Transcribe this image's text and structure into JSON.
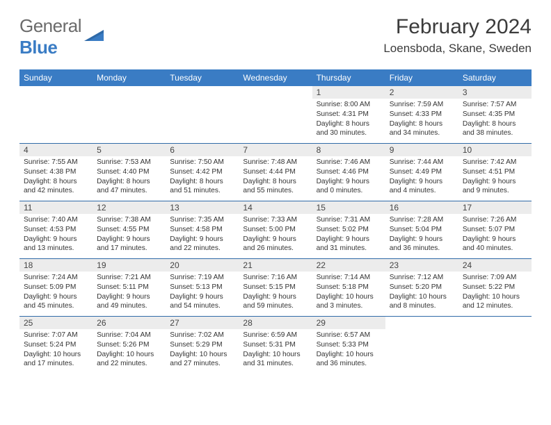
{
  "logo": {
    "text1": "General",
    "text2": "Blue"
  },
  "header": {
    "month": "February 2024",
    "location": "Loensboda, Skane, Sweden"
  },
  "colors": {
    "accent": "#3a7cc4",
    "daynum_bg": "#ececec",
    "text": "#333333",
    "border": "#2f6aa8"
  },
  "weekdays": [
    "Sunday",
    "Monday",
    "Tuesday",
    "Wednesday",
    "Thursday",
    "Friday",
    "Saturday"
  ],
  "weeks": [
    [
      {
        "n": "",
        "s": "",
        "t": "",
        "d": ""
      },
      {
        "n": "",
        "s": "",
        "t": "",
        "d": ""
      },
      {
        "n": "",
        "s": "",
        "t": "",
        "d": ""
      },
      {
        "n": "",
        "s": "",
        "t": "",
        "d": ""
      },
      {
        "n": "1",
        "s": "Sunrise: 8:00 AM",
        "t": "Sunset: 4:31 PM",
        "d": "Daylight: 8 hours and 30 minutes."
      },
      {
        "n": "2",
        "s": "Sunrise: 7:59 AM",
        "t": "Sunset: 4:33 PM",
        "d": "Daylight: 8 hours and 34 minutes."
      },
      {
        "n": "3",
        "s": "Sunrise: 7:57 AM",
        "t": "Sunset: 4:35 PM",
        "d": "Daylight: 8 hours and 38 minutes."
      }
    ],
    [
      {
        "n": "4",
        "s": "Sunrise: 7:55 AM",
        "t": "Sunset: 4:38 PM",
        "d": "Daylight: 8 hours and 42 minutes."
      },
      {
        "n": "5",
        "s": "Sunrise: 7:53 AM",
        "t": "Sunset: 4:40 PM",
        "d": "Daylight: 8 hours and 47 minutes."
      },
      {
        "n": "6",
        "s": "Sunrise: 7:50 AM",
        "t": "Sunset: 4:42 PM",
        "d": "Daylight: 8 hours and 51 minutes."
      },
      {
        "n": "7",
        "s": "Sunrise: 7:48 AM",
        "t": "Sunset: 4:44 PM",
        "d": "Daylight: 8 hours and 55 minutes."
      },
      {
        "n": "8",
        "s": "Sunrise: 7:46 AM",
        "t": "Sunset: 4:46 PM",
        "d": "Daylight: 9 hours and 0 minutes."
      },
      {
        "n": "9",
        "s": "Sunrise: 7:44 AM",
        "t": "Sunset: 4:49 PM",
        "d": "Daylight: 9 hours and 4 minutes."
      },
      {
        "n": "10",
        "s": "Sunrise: 7:42 AM",
        "t": "Sunset: 4:51 PM",
        "d": "Daylight: 9 hours and 9 minutes."
      }
    ],
    [
      {
        "n": "11",
        "s": "Sunrise: 7:40 AM",
        "t": "Sunset: 4:53 PM",
        "d": "Daylight: 9 hours and 13 minutes."
      },
      {
        "n": "12",
        "s": "Sunrise: 7:38 AM",
        "t": "Sunset: 4:55 PM",
        "d": "Daylight: 9 hours and 17 minutes."
      },
      {
        "n": "13",
        "s": "Sunrise: 7:35 AM",
        "t": "Sunset: 4:58 PM",
        "d": "Daylight: 9 hours and 22 minutes."
      },
      {
        "n": "14",
        "s": "Sunrise: 7:33 AM",
        "t": "Sunset: 5:00 PM",
        "d": "Daylight: 9 hours and 26 minutes."
      },
      {
        "n": "15",
        "s": "Sunrise: 7:31 AM",
        "t": "Sunset: 5:02 PM",
        "d": "Daylight: 9 hours and 31 minutes."
      },
      {
        "n": "16",
        "s": "Sunrise: 7:28 AM",
        "t": "Sunset: 5:04 PM",
        "d": "Daylight: 9 hours and 36 minutes."
      },
      {
        "n": "17",
        "s": "Sunrise: 7:26 AM",
        "t": "Sunset: 5:07 PM",
        "d": "Daylight: 9 hours and 40 minutes."
      }
    ],
    [
      {
        "n": "18",
        "s": "Sunrise: 7:24 AM",
        "t": "Sunset: 5:09 PM",
        "d": "Daylight: 9 hours and 45 minutes."
      },
      {
        "n": "19",
        "s": "Sunrise: 7:21 AM",
        "t": "Sunset: 5:11 PM",
        "d": "Daylight: 9 hours and 49 minutes."
      },
      {
        "n": "20",
        "s": "Sunrise: 7:19 AM",
        "t": "Sunset: 5:13 PM",
        "d": "Daylight: 9 hours and 54 minutes."
      },
      {
        "n": "21",
        "s": "Sunrise: 7:16 AM",
        "t": "Sunset: 5:15 PM",
        "d": "Daylight: 9 hours and 59 minutes."
      },
      {
        "n": "22",
        "s": "Sunrise: 7:14 AM",
        "t": "Sunset: 5:18 PM",
        "d": "Daylight: 10 hours and 3 minutes."
      },
      {
        "n": "23",
        "s": "Sunrise: 7:12 AM",
        "t": "Sunset: 5:20 PM",
        "d": "Daylight: 10 hours and 8 minutes."
      },
      {
        "n": "24",
        "s": "Sunrise: 7:09 AM",
        "t": "Sunset: 5:22 PM",
        "d": "Daylight: 10 hours and 12 minutes."
      }
    ],
    [
      {
        "n": "25",
        "s": "Sunrise: 7:07 AM",
        "t": "Sunset: 5:24 PM",
        "d": "Daylight: 10 hours and 17 minutes."
      },
      {
        "n": "26",
        "s": "Sunrise: 7:04 AM",
        "t": "Sunset: 5:26 PM",
        "d": "Daylight: 10 hours and 22 minutes."
      },
      {
        "n": "27",
        "s": "Sunrise: 7:02 AM",
        "t": "Sunset: 5:29 PM",
        "d": "Daylight: 10 hours and 27 minutes."
      },
      {
        "n": "28",
        "s": "Sunrise: 6:59 AM",
        "t": "Sunset: 5:31 PM",
        "d": "Daylight: 10 hours and 31 minutes."
      },
      {
        "n": "29",
        "s": "Sunrise: 6:57 AM",
        "t": "Sunset: 5:33 PM",
        "d": "Daylight: 10 hours and 36 minutes."
      },
      {
        "n": "",
        "s": "",
        "t": "",
        "d": ""
      },
      {
        "n": "",
        "s": "",
        "t": "",
        "d": ""
      }
    ]
  ]
}
